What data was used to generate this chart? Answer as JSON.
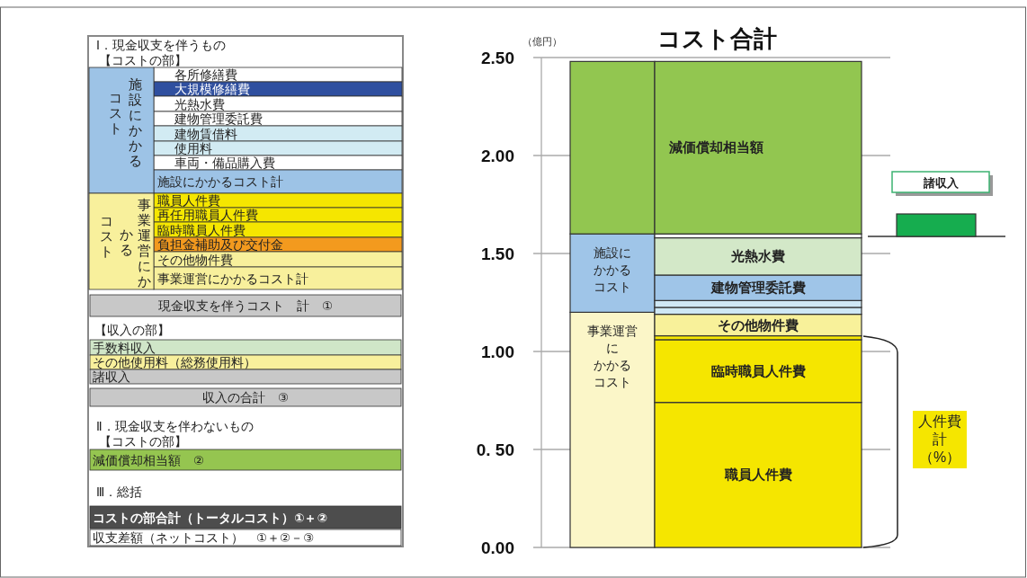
{
  "chart_data": [
    {
      "type": "other",
      "categories": [
        "Ⅰ．現金収支を伴うもの",
        "【コストの部】",
        "各所修繕費",
        "大規模修繕費",
        "光熱水費",
        "建物管理委託費",
        "建物賃借料",
        "使用料",
        "車両・備品購入費",
        "施設にかかるコスト計",
        "職員人件費",
        "再任用職員人件費",
        "臨時職員人件費",
        "負担金補助及び交付金",
        "その他物件費",
        "事業運営にかかるコスト計",
        "現金収支を伴うコスト　計　①",
        "【収入の部】",
        "手数料収入",
        "その他使用料（総務使用料）",
        "諸収入",
        "収入の合計　③",
        "Ⅱ．現金収支を伴わないもの",
        "【コストの部】",
        "減価償却相当額　②",
        "Ⅲ．総括",
        "コストの部合計（トータルコスト）①＋②",
        "収支差額（ネットコスト）　①＋②－③"
      ],
      "colors": [
        "#ffffff",
        "#ffffff",
        "#ffffff",
        "#2f4f9f",
        "#ffffff",
        "#ffffff",
        "#d2ebf3",
        "#d2ebf3",
        "#ffffff",
        "#9dc3e6",
        "#f5e600",
        "#f5e600",
        "#f5e600",
        "#f39a1e",
        "#f8f09c",
        "#f8f09c",
        "#c8c8c8",
        "#ffffff",
        "#d0e6c8",
        "#f8f09c",
        "#c8c8c8",
        "#c8c8c8",
        "#ffffff",
        "#ffffff",
        "#95c550",
        "#ffffff",
        "#4d4d4d",
        "#ffffff"
      ],
      "annotations": [
        "施設にかかる",
        "コスト",
        "事業運営にか",
        "かる",
        "コスト"
      ]
    },
    {
      "type": "bar",
      "title": "コスト合計",
      "ylabel": "（億円）",
      "stacked": true,
      "grid": "y",
      "categories": [
        null,
        null
      ],
      "ylim": [
        0,
        2.5
      ],
      "yticks": [
        {
          "value": 0,
          "label": "0.00"
        },
        {
          "value": 0.5,
          "label": "0. 50"
        },
        {
          "value": 1,
          "label": "1.00"
        },
        {
          "value": 1.5,
          "label": "1.50"
        },
        {
          "value": 2,
          "label": "2.00"
        },
        {
          "value": 2.5,
          "label": "2.50"
        }
      ],
      "series": [
        {
          "name": "事業運営にかかるコスト",
          "color": "#fbf6c8",
          "values": [
            1.2,
            null
          ]
        },
        {
          "name": "施設にかかるコスト",
          "color": "#9fc5e8",
          "values": [
            0.4,
            null
          ]
        },
        {
          "name": "職員人件費",
          "color": "#f5e600",
          "values": [
            null,
            0.74
          ]
        },
        {
          "name": "臨時職員人件費",
          "color": "#f5e600",
          "values": [
            null,
            0.32
          ]
        },
        {
          "color": "#f5e600",
          "values": [
            null,
            0.02
          ]
        },
        {
          "name": "その他物件費",
          "color": "#f8f19a",
          "values": [
            null,
            0.11
          ]
        },
        {
          "color": "#cfe8f5",
          "values": [
            null,
            0.035
          ]
        },
        {
          "color": "#cfe8f5",
          "values": [
            null,
            0.035
          ]
        },
        {
          "name": "建物管理委託費",
          "color": "#9fc5e8",
          "values": [
            null,
            0.13
          ]
        },
        {
          "name": "光熱水費",
          "color": "#d3e8c8",
          "values": [
            null,
            0.19
          ]
        },
        {
          "color": "#ffffff",
          "values": [
            null,
            0.02
          ]
        },
        {
          "name": "減価償却相当額",
          "color": "#92c650",
          "values": [
            0.88,
            0.88
          ]
        }
      ],
      "annotations": [
        "諸収入",
        "人件費計（%）"
      ]
    }
  ]
}
